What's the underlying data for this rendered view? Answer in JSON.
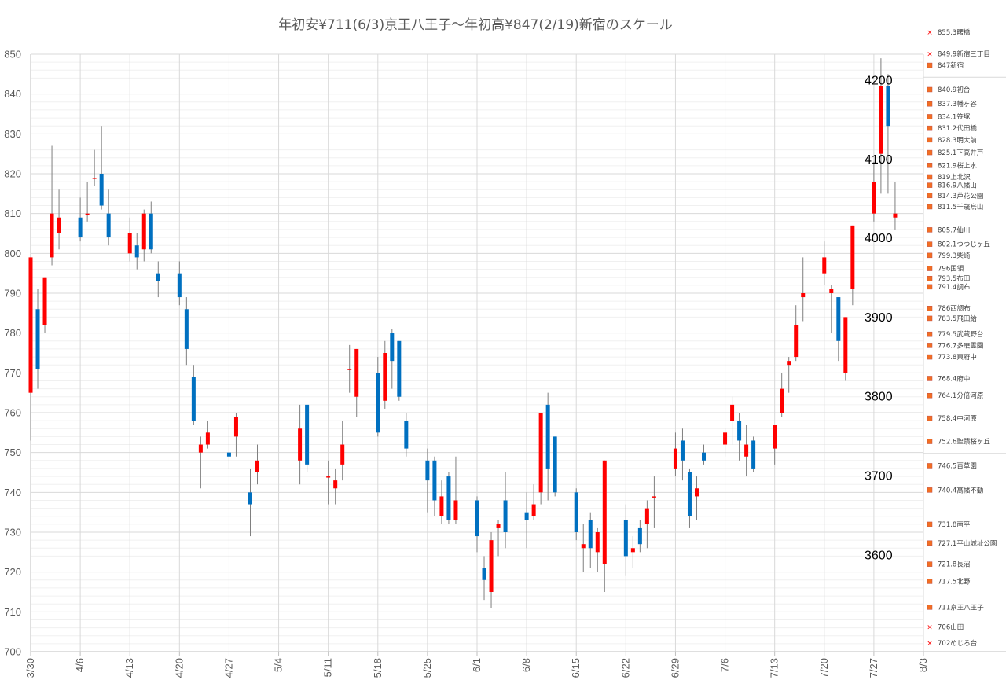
{
  "chart_data": {
    "type": "candlestick",
    "title": "年初安¥711(6/3)京王八王子〜年初高¥847(2/19)新宿のスケール",
    "ylim": [
      700,
      850
    ],
    "yticks": [
      700,
      710,
      720,
      730,
      740,
      750,
      760,
      770,
      780,
      790,
      800,
      810,
      820,
      830,
      840,
      850
    ],
    "xlim": [
      "3/30",
      "8/3"
    ],
    "xticks": [
      "3/30",
      "4/6",
      "4/13",
      "4/20",
      "4/27",
      "5/4",
      "5/11",
      "5/18",
      "5/25",
      "6/1",
      "6/8",
      "6/15",
      "6/22",
      "6/29",
      "7/6",
      "7/13",
      "7/20",
      "7/27",
      "8/3"
    ],
    "up_color": "#ff0000",
    "down_color": "#0070c0",
    "wick_color": "#7f7f7f",
    "candles": [
      {
        "date": "3/30",
        "open": 765,
        "close": 799,
        "high": 799,
        "low": 753
      },
      {
        "date": "3/31",
        "open": 786,
        "close": 771,
        "high": 791,
        "low": 766
      },
      {
        "date": "4/1",
        "open": 782,
        "close": 794,
        "high": 794,
        "low": 780
      },
      {
        "date": "4/2",
        "open": 799,
        "close": 810,
        "high": 827,
        "low": 797
      },
      {
        "date": "4/3",
        "open": 805,
        "close": 809,
        "high": 816,
        "low": 801
      },
      {
        "date": "4/6",
        "open": 809,
        "close": 804,
        "high": 814,
        "low": 803
      },
      {
        "date": "4/7",
        "open": 810,
        "close": 810,
        "high": 818,
        "low": 808
      },
      {
        "date": "4/8",
        "open": 819,
        "close": 819,
        "high": 826,
        "low": 817
      },
      {
        "date": "4/9",
        "open": 820,
        "close": 812,
        "high": 832,
        "low": 811
      },
      {
        "date": "4/10",
        "open": 810,
        "close": 804,
        "high": 816,
        "low": 802
      },
      {
        "date": "4/13",
        "open": 800,
        "close": 805,
        "high": 809,
        "low": 798
      },
      {
        "date": "4/14",
        "open": 802,
        "close": 799,
        "high": 805,
        "low": 796
      },
      {
        "date": "4/15",
        "open": 801,
        "close": 810,
        "high": 811,
        "low": 798
      },
      {
        "date": "4/16",
        "open": 810,
        "close": 801,
        "high": 813,
        "low": 800
      },
      {
        "date": "4/17",
        "open": 795,
        "close": 793,
        "high": 798,
        "low": 789
      },
      {
        "date": "4/20",
        "open": 795,
        "close": 789,
        "high": 798,
        "low": 787
      },
      {
        "date": "4/21",
        "open": 786,
        "close": 776,
        "high": 789,
        "low": 772
      },
      {
        "date": "4/22",
        "open": 769,
        "close": 758,
        "high": 772,
        "low": 757
      },
      {
        "date": "4/23",
        "open": 750,
        "close": 752,
        "high": 754,
        "low": 741
      },
      {
        "date": "4/24",
        "open": 752,
        "close": 755,
        "high": 758,
        "low": 751
      },
      {
        "date": "4/27",
        "open": 750,
        "close": 749,
        "high": 757,
        "low": 746
      },
      {
        "date": "4/28",
        "open": 754,
        "close": 759,
        "high": 760,
        "low": 749
      },
      {
        "date": "4/30",
        "open": 740,
        "close": 737,
        "high": 746,
        "low": 729
      },
      {
        "date": "5/1",
        "open": 745,
        "close": 748,
        "high": 752,
        "low": 742
      },
      {
        "date": "5/7",
        "open": 748,
        "close": 756,
        "high": 762,
        "low": 742
      },
      {
        "date": "5/8",
        "open": 762,
        "close": 747,
        "high": 762,
        "low": 745
      },
      {
        "date": "5/11",
        "open": 744,
        "close": 744,
        "high": 748,
        "low": 737
      },
      {
        "date": "5/12",
        "open": 741,
        "close": 743,
        "high": 746,
        "low": 737
      },
      {
        "date": "5/13",
        "open": 747,
        "close": 752,
        "high": 758,
        "low": 743
      },
      {
        "date": "5/14",
        "open": 771,
        "close": 771,
        "high": 777,
        "low": 765
      },
      {
        "date": "5/15",
        "open": 764,
        "close": 776,
        "high": 776,
        "low": 759
      },
      {
        "date": "5/18",
        "open": 770,
        "close": 755,
        "high": 774,
        "low": 754
      },
      {
        "date": "5/19",
        "open": 763,
        "close": 775,
        "high": 778,
        "low": 761
      },
      {
        "date": "5/20",
        "open": 780,
        "close": 773,
        "high": 781,
        "low": 766
      },
      {
        "date": "5/21",
        "open": 778,
        "close": 764,
        "high": 778,
        "low": 763
      },
      {
        "date": "5/22",
        "open": 758,
        "close": 751,
        "high": 760,
        "low": 749
      },
      {
        "date": "5/25",
        "open": 748,
        "close": 743,
        "high": 751,
        "low": 735
      },
      {
        "date": "5/26",
        "open": 748,
        "close": 738,
        "high": 749,
        "low": 734
      },
      {
        "date": "5/27",
        "open": 734,
        "close": 739,
        "high": 743,
        "low": 732
      },
      {
        "date": "5/28",
        "open": 744,
        "close": 733,
        "high": 745,
        "low": 732
      },
      {
        "date": "5/29",
        "open": 733,
        "close": 738,
        "high": 749,
        "low": 732
      },
      {
        "date": "6/1",
        "open": 738,
        "close": 729,
        "high": 739,
        "low": 725
      },
      {
        "date": "6/2",
        "open": 721,
        "close": 718,
        "high": 724,
        "low": 713
      },
      {
        "date": "6/3",
        "open": 715,
        "close": 728,
        "high": 730,
        "low": 711
      },
      {
        "date": "6/4",
        "open": 731,
        "close": 732,
        "high": 733,
        "low": 724
      },
      {
        "date": "6/5",
        "open": 738,
        "close": 730,
        "high": 745,
        "low": 726
      },
      {
        "date": "6/8",
        "open": 735,
        "close": 733,
        "high": 740,
        "low": 726
      },
      {
        "date": "6/9",
        "open": 734,
        "close": 737,
        "high": 742,
        "low": 733
      },
      {
        "date": "6/10",
        "open": 740,
        "close": 760,
        "high": 760,
        "low": 737
      },
      {
        "date": "6/11",
        "open": 762,
        "close": 746,
        "high": 765,
        "low": 738
      },
      {
        "date": "6/12",
        "open": 754,
        "close": 740,
        "high": 754,
        "low": 739
      },
      {
        "date": "6/15",
        "open": 740,
        "close": 730,
        "high": 741,
        "low": 728
      },
      {
        "date": "6/16",
        "open": 726,
        "close": 727,
        "high": 732,
        "low": 720
      },
      {
        "date": "6/17",
        "open": 733,
        "close": 726,
        "high": 735,
        "low": 721
      },
      {
        "date": "6/18",
        "open": 725,
        "close": 730,
        "high": 731,
        "low": 720
      },
      {
        "date": "6/19",
        "open": 722,
        "close": 748,
        "high": 748,
        "low": 715
      },
      {
        "date": "6/22",
        "open": 733,
        "close": 724,
        "high": 737,
        "low": 719
      },
      {
        "date": "6/23",
        "open": 725,
        "close": 726,
        "high": 729,
        "low": 721
      },
      {
        "date": "6/24",
        "open": 731,
        "close": 727,
        "high": 733,
        "low": 725
      },
      {
        "date": "6/25",
        "open": 732,
        "close": 736,
        "high": 738,
        "low": 726
      },
      {
        "date": "6/26",
        "open": 739,
        "close": 739,
        "high": 744,
        "low": 731
      },
      {
        "date": "6/29",
        "open": 746,
        "close": 751,
        "high": 755,
        "low": 744
      },
      {
        "date": "6/30",
        "open": 753,
        "close": 748,
        "high": 756,
        "low": 743
      },
      {
        "date": "7/1",
        "open": 745,
        "close": 734,
        "high": 746,
        "low": 731
      },
      {
        "date": "7/2",
        "open": 739,
        "close": 741,
        "high": 744,
        "low": 733
      },
      {
        "date": "7/3",
        "open": 750,
        "close": 748,
        "high": 752,
        "low": 747
      },
      {
        "date": "7/6",
        "open": 752,
        "close": 755,
        "high": 756,
        "low": 749
      },
      {
        "date": "7/7",
        "open": 758,
        "close": 762,
        "high": 764,
        "low": 752
      },
      {
        "date": "7/8",
        "open": 758,
        "close": 753,
        "high": 760,
        "low": 748
      },
      {
        "date": "7/9",
        "open": 749,
        "close": 752,
        "high": 757,
        "low": 744
      },
      {
        "date": "7/10",
        "open": 753,
        "close": 746,
        "high": 754,
        "low": 745
      },
      {
        "date": "7/13",
        "open": 751,
        "close": 757,
        "high": 757,
        "low": 747
      },
      {
        "date": "7/14",
        "open": 760,
        "close": 766,
        "high": 770,
        "low": 759
      },
      {
        "date": "7/15",
        "open": 772,
        "close": 773,
        "high": 774,
        "low": 765
      },
      {
        "date": "7/16",
        "open": 774,
        "close": 782,
        "high": 787,
        "low": 773
      },
      {
        "date": "7/17",
        "open": 789,
        "close": 790,
        "high": 799,
        "low": 783
      },
      {
        "date": "7/20",
        "open": 795,
        "close": 799,
        "high": 803,
        "low": 792
      },
      {
        "date": "7/21",
        "open": 790,
        "close": 791,
        "high": 792,
        "low": 780
      },
      {
        "date": "7/22",
        "open": 789,
        "close": 778,
        "high": 789,
        "low": 773
      },
      {
        "date": "7/23",
        "open": 770,
        "close": 784,
        "high": 784,
        "low": 768
      },
      {
        "date": "7/24",
        "open": 791,
        "close": 807,
        "high": 807,
        "low": 787
      },
      {
        "date": "7/27",
        "open": 810,
        "close": 818,
        "high": 823,
        "low": 808
      },
      {
        "date": "7/28",
        "open": 825,
        "close": 842,
        "high": 849,
        "low": 815
      },
      {
        "date": "7/29",
        "open": 842,
        "close": 832,
        "high": 845,
        "low": 815
      },
      {
        "date": "7/30",
        "open": 809,
        "close": 810,
        "high": 818,
        "low": 806
      }
    ],
    "right_axis_labels": [
      {
        "value": 843.4,
        "label": "4200"
      },
      {
        "value": 823.6,
        "label": "4100"
      },
      {
        "value": 803.8,
        "label": "4000"
      },
      {
        "value": 783.9,
        "label": "3900"
      },
      {
        "value": 764.0,
        "label": "3800"
      },
      {
        "value": 744.1,
        "label": "3700"
      },
      {
        "value": 724.2,
        "label": "3600"
      }
    ],
    "stations": [
      {
        "price": 855.3,
        "label": "855.3曙橋",
        "marker": "x"
      },
      {
        "price": 849.9,
        "label": "849.9新宿三丁目",
        "marker": "x"
      },
      {
        "price": 847,
        "label": "847新宿",
        "marker": "square"
      },
      {
        "price": 840.9,
        "label": "840.9初台",
        "marker": "square"
      },
      {
        "price": 837.3,
        "label": "837.3幡ヶ谷",
        "marker": "square"
      },
      {
        "price": 834.1,
        "label": "834.1笹塚",
        "marker": "square"
      },
      {
        "price": 831.2,
        "label": "831.2代田橋",
        "marker": "square"
      },
      {
        "price": 828.3,
        "label": "828.3明大前",
        "marker": "square"
      },
      {
        "price": 825.1,
        "label": "825.1下高井戸",
        "marker": "square"
      },
      {
        "price": 821.9,
        "label": "821.9桜上水",
        "marker": "square"
      },
      {
        "price": 819,
        "label": "819上北沢",
        "marker": "square"
      },
      {
        "price": 816.9,
        "label": "816.9八幡山",
        "marker": "square"
      },
      {
        "price": 814.3,
        "label": "814.3芦花公園",
        "marker": "square"
      },
      {
        "price": 811.5,
        "label": "811.5千歳烏山",
        "marker": "square"
      },
      {
        "price": 805.7,
        "label": "805.7仙川",
        "marker": "square"
      },
      {
        "price": 802.1,
        "label": "802.1つつじヶ丘",
        "marker": "square"
      },
      {
        "price": 799.3,
        "label": "799.3柴崎",
        "marker": "square"
      },
      {
        "price": 796,
        "label": "796国領",
        "marker": "square"
      },
      {
        "price": 793.5,
        "label": "793.5布田",
        "marker": "square"
      },
      {
        "price": 791.4,
        "label": "791.4調布",
        "marker": "square"
      },
      {
        "price": 786,
        "label": "786西調布",
        "marker": "square"
      },
      {
        "price": 783.5,
        "label": "783.5飛田給",
        "marker": "square"
      },
      {
        "price": 779.5,
        "label": "779.5武蔵野台",
        "marker": "square"
      },
      {
        "price": 776.7,
        "label": "776.7多磨霊園",
        "marker": "square"
      },
      {
        "price": 773.8,
        "label": "773.8東府中",
        "marker": "square"
      },
      {
        "price": 768.4,
        "label": "768.4府中",
        "marker": "square"
      },
      {
        "price": 764.1,
        "label": "764.1分倍河原",
        "marker": "square"
      },
      {
        "price": 758.4,
        "label": "758.4中河原",
        "marker": "square"
      },
      {
        "price": 752.6,
        "label": "752.6聖蹟桜ヶ丘",
        "marker": "square"
      },
      {
        "price": 746.5,
        "label": "746.5百草園",
        "marker": "square"
      },
      {
        "price": 740.4,
        "label": "740.4高幡不動",
        "marker": "square"
      },
      {
        "price": 731.8,
        "label": "731.8南平",
        "marker": "square"
      },
      {
        "price": 727.1,
        "label": "727.1平山城址公園",
        "marker": "square"
      },
      {
        "price": 721.8,
        "label": "721.8長沼",
        "marker": "square"
      },
      {
        "price": 717.5,
        "label": "717.5北野",
        "marker": "square"
      },
      {
        "price": 711,
        "label": "711京王八王子",
        "marker": "square"
      },
      {
        "price": 706,
        "label": "706山田",
        "marker": "x"
      },
      {
        "price": 702,
        "label": "702めじろ台",
        "marker": "x"
      }
    ]
  }
}
